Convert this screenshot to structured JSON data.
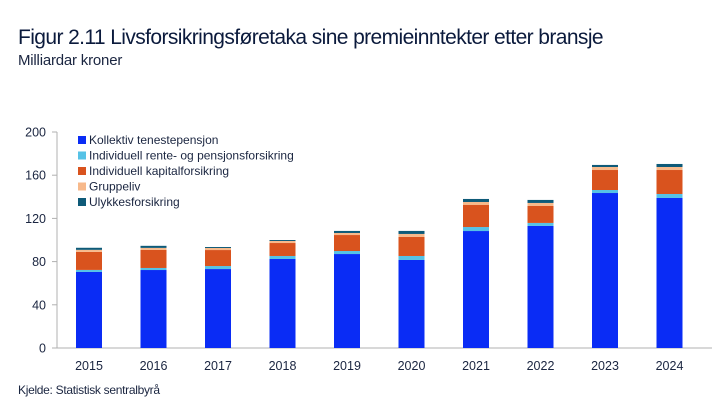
{
  "header": {
    "title": "Figur 2.11 Livsforsikringsføretaka sine premieinntekter etter bransje",
    "subtitle": "Milliardar kroner"
  },
  "footer": {
    "source": "Kjelde: Statistisk sentralbyrå"
  },
  "chart_data": {
    "type": "bar",
    "stacked": true,
    "title": "Figur 2.11 Livsforsikringsføretaka sine premieinntekter etter bransje",
    "subtitle": "Milliardar kroner",
    "xlabel": "",
    "ylabel": "Milliardar kroner",
    "ylim": [
      0,
      200
    ],
    "yticks": [
      0,
      40,
      80,
      120,
      160,
      200
    ],
    "grid": false,
    "legend_position": "top-left",
    "categories": [
      "2015",
      "2016",
      "2017",
      "2018",
      "2019",
      "2020",
      "2021",
      "2022",
      "2023",
      "2024"
    ],
    "series": [
      {
        "name": "Kollektiv tenestepensjon",
        "color": "#0a2cf5",
        "values": [
          70.4,
          72.2,
          73.1,
          82.4,
          87.0,
          81.5,
          108.3,
          113.0,
          143.5,
          138.9
        ]
      },
      {
        "name": "Individuell rente- og pensjonsforsikring",
        "color": "#56c2e6",
        "values": [
          1.9,
          1.9,
          2.8,
          2.8,
          2.8,
          3.7,
          3.7,
          2.8,
          2.8,
          3.7
        ]
      },
      {
        "name": "Individuell kapitalforsikring",
        "color": "#d9531e",
        "values": [
          16.7,
          16.7,
          14.8,
          12.0,
          14.8,
          17.6,
          20.4,
          15.7,
          18.5,
          22.2
        ]
      },
      {
        "name": "Gruppeliv",
        "color": "#f7b98b",
        "values": [
          1.9,
          1.9,
          1.9,
          1.9,
          1.9,
          2.8,
          2.8,
          2.8,
          2.8,
          2.8
        ]
      },
      {
        "name": "Ulykkesforsikring",
        "color": "#0e5a78",
        "values": [
          1.9,
          1.9,
          0.9,
          0.9,
          1.9,
          2.8,
          2.8,
          2.8,
          1.9,
          2.8
        ]
      }
    ]
  }
}
